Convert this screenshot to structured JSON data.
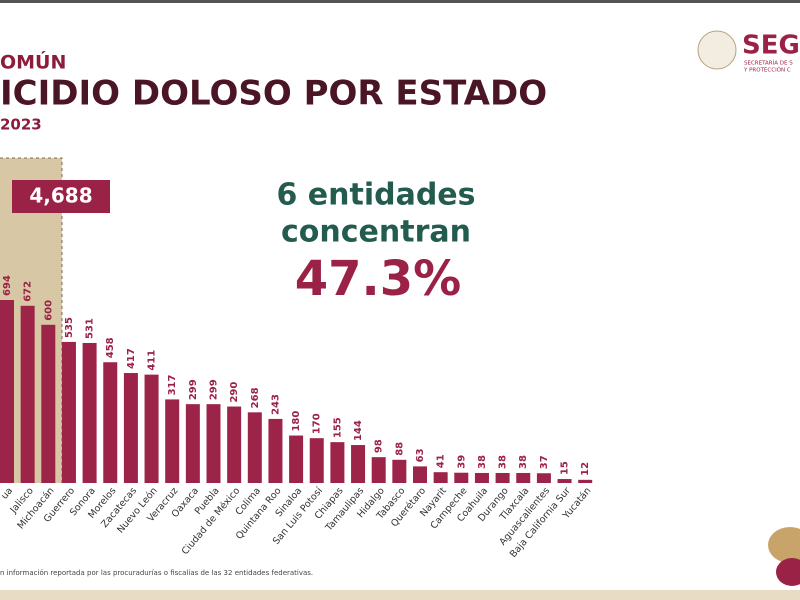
{
  "chart_data": {
    "type": "bar",
    "kicker": "OMÚN",
    "title": "ICIDIO DOLOSO POR ESTADO",
    "subtitle": "2023",
    "highlight": "4,688",
    "annotation_line1": "6 entidades",
    "annotation_line2": "concentran",
    "annotation_value": "47.3%",
    "logo_text": "SEGU",
    "logo_subtext1": "SECRETARÍA DE S",
    "logo_subtext2": "Y PROTECCIÓN C",
    "footnote": "n información reportada por las procuradurías o fiscalías de las 32 entidades federativas.",
    "color": "#9d2449",
    "categories": [
      "ua",
      "Jalisco",
      "Michoacán",
      "Guerrero",
      "Sonora",
      "Morelos",
      "Zacatecas",
      "Nuevo León",
      "Veracruz",
      "Oaxaca",
      "Puebla",
      "Ciudad de México",
      "Colima",
      "Quintana Roo",
      "Sinaloa",
      "San Luis Potosí",
      "Chiapas",
      "Tamaulipas",
      "Hidalgo",
      "Tabasco",
      "Querétaro",
      "Nayarit",
      "Campeche",
      "Coahuila",
      "Durango",
      "Tlaxcala",
      "Aguascalientes",
      "Baja California Sur",
      "Yucatán"
    ],
    "values": [
      694,
      672,
      600,
      535,
      531,
      458,
      417,
      411,
      317,
      299,
      299,
      290,
      268,
      243,
      180,
      170,
      155,
      144,
      98,
      88,
      63,
      41,
      39,
      38,
      38,
      38,
      37,
      15,
      12
    ]
  }
}
